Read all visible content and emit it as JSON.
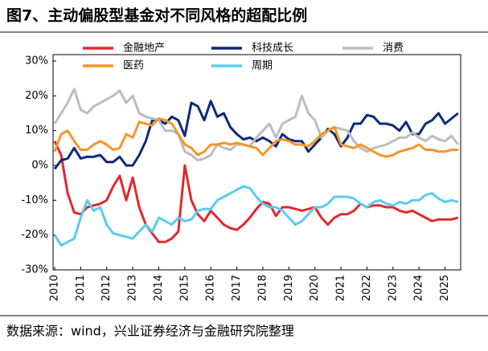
{
  "chart_data": {
    "type": "line",
    "title": "图7、主动偏股型基金对不同风格的超配比例",
    "source": "数据来源：wind，兴业证券经济与金融研究院整理",
    "x": [
      2010,
      2010.25,
      2010.5,
      2010.75,
      2011,
      2011.25,
      2011.5,
      2011.75,
      2012,
      2012.25,
      2012.5,
      2012.75,
      2013,
      2013.25,
      2013.5,
      2013.75,
      2014,
      2014.25,
      2014.5,
      2014.75,
      2015,
      2015.25,
      2015.5,
      2015.75,
      2016,
      2016.25,
      2016.5,
      2016.75,
      2017,
      2017.25,
      2017.5,
      2017.75,
      2018,
      2018.25,
      2018.5,
      2018.75,
      2019,
      2019.25,
      2019.5,
      2019.75,
      2020,
      2020.25,
      2020.5,
      2020.75,
      2021,
      2021.25,
      2021.5,
      2021.75,
      2022,
      2022.25,
      2022.5,
      2022.75,
      2023,
      2023.25,
      2023.5,
      2023.75,
      2024,
      2024.25,
      2024.5,
      2024.75,
      2025,
      2025.25,
      2025.5
    ],
    "xlim": [
      2010,
      2025.6
    ],
    "xticks": [
      2010,
      2011,
      2012,
      2013,
      2014,
      2015,
      2016,
      2017,
      2018,
      2019,
      2020,
      2021,
      2022,
      2023,
      2024,
      2025
    ],
    "ylim": [
      -30,
      30
    ],
    "yticks": [
      {
        "value": -30,
        "label": "-30%"
      },
      {
        "value": -20,
        "label": "-20%"
      },
      {
        "value": -10,
        "label": "-10%"
      },
      {
        "value": 0,
        "label": "0%"
      },
      {
        "value": 10,
        "label": "10%"
      },
      {
        "value": 20,
        "label": "20%"
      },
      {
        "value": 30,
        "label": "30%"
      }
    ],
    "series": [
      {
        "name": "金融地产",
        "color": "#e0282e",
        "values": [
          7,
          3,
          -8,
          -13.5,
          -14,
          -12,
          -11.5,
          -11,
          -10,
          -6,
          -3,
          -10,
          -3.5,
          -12,
          -17,
          -19.5,
          -22,
          -22,
          -21,
          -19,
          0,
          -10,
          -14,
          -16,
          -13,
          -15,
          -17,
          -18,
          -18.5,
          -17,
          -15,
          -12.5,
          -10.5,
          -11,
          -14.5,
          -12,
          -12,
          -12.5,
          -13,
          -12.5,
          -12,
          -15,
          -17,
          -15,
          -14,
          -14,
          -13,
          -11,
          -12,
          -11.5,
          -11.5,
          -12,
          -12,
          -13,
          -13.5,
          -13,
          -14,
          -15,
          -16,
          -15.5,
          -15.5,
          -15.5,
          -15
        ]
      },
      {
        "name": "科技成长",
        "color": "#0d2a7a",
        "values": [
          -1,
          1.5,
          2,
          5,
          2,
          2.5,
          2.5,
          3,
          1,
          1,
          2.5,
          0,
          0,
          3,
          7,
          13,
          13,
          12,
          14,
          13,
          8.5,
          18,
          17,
          13,
          18.5,
          14,
          15,
          11,
          9,
          7.5,
          8,
          7,
          8,
          7,
          5.5,
          9,
          7.5,
          7,
          7,
          4,
          6,
          8,
          10.5,
          9,
          5.5,
          8,
          12,
          12,
          14.5,
          14,
          12,
          12,
          11.5,
          10,
          12.5,
          9,
          9,
          12,
          13,
          15,
          12,
          13.5,
          15
        ]
      },
      {
        "name": "消费",
        "color": "#bdbdbd",
        "values": [
          12,
          15,
          18,
          22,
          16,
          15,
          17,
          18,
          19,
          20,
          21.5,
          18,
          20,
          15,
          14,
          13.5,
          13,
          10,
          10,
          9,
          4,
          3,
          1.5,
          2,
          3,
          6,
          5,
          4.5,
          6,
          6,
          5.5,
          8,
          10,
          12,
          8,
          12,
          13,
          14,
          20,
          15,
          13,
          8,
          10,
          11,
          10.5,
          10,
          7,
          5,
          4,
          5,
          5.5,
          6,
          7,
          8,
          8,
          9.5,
          8,
          7,
          8.5,
          7.5,
          7,
          8.5,
          6
        ]
      },
      {
        "name": "医药",
        "color": "#f5962a",
        "values": [
          4,
          9,
          10,
          7,
          4.5,
          4.5,
          6,
          7,
          6,
          4.5,
          5,
          9,
          8,
          12.5,
          12,
          11.5,
          13.5,
          13,
          12,
          9,
          6,
          5,
          3,
          4,
          6,
          6,
          6.5,
          6,
          6.5,
          6,
          5.5,
          5,
          3,
          5,
          7,
          7.5,
          7,
          6,
          6,
          5.5,
          7,
          9,
          10,
          11,
          6,
          5.5,
          5,
          6,
          5,
          4,
          3,
          2.5,
          3,
          4,
          4.5,
          5,
          6,
          4.5,
          4.5,
          4,
          4,
          4.5,
          4.5
        ]
      },
      {
        "name": "周期",
        "color": "#5ccbef",
        "values": [
          -20,
          -23,
          -22,
          -21,
          -15,
          -10,
          -13,
          -12,
          -17,
          -19.5,
          -20,
          -20.5,
          -21,
          -19,
          -17,
          -19,
          -15,
          -16,
          -17,
          -15,
          -16,
          -15.5,
          -13,
          -12.5,
          -12.5,
          -10,
          -9,
          -8,
          -7,
          -6,
          -6.5,
          -9,
          -11,
          -12,
          -12,
          -13,
          -15,
          -17,
          -16,
          -14,
          -12,
          -12,
          -11,
          -9,
          -9,
          -9,
          -9.5,
          -11,
          -12,
          -10.5,
          -10,
          -11,
          -11.5,
          -10.5,
          -11,
          -10,
          -10,
          -8.5,
          -8,
          -9.5,
          -10.5,
          -10,
          -10.5
        ]
      }
    ]
  }
}
